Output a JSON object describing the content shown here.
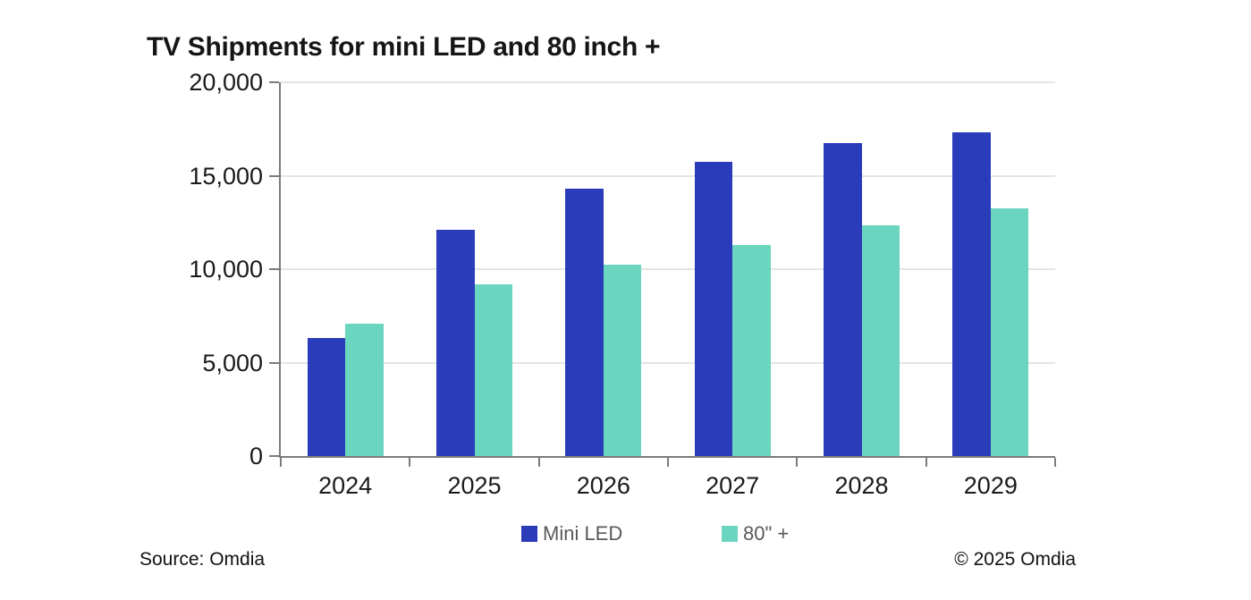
{
  "chart_data": {
    "type": "bar",
    "title": "TV Shipments for mini LED and 80 inch +",
    "categories": [
      "2024",
      "2025",
      "2026",
      "2027",
      "2028",
      "2029"
    ],
    "series": [
      {
        "name": "Mini LED",
        "color": "#2b3cba",
        "values": [
          6300,
          12100,
          14300,
          15750,
          16750,
          17300
        ]
      },
      {
        "name": "80\" +",
        "color": "#6ad6bf",
        "values": [
          7100,
          9200,
          10250,
          11300,
          12350,
          13250
        ]
      }
    ],
    "ylim": [
      0,
      20000
    ],
    "y_tick_labels": [
      "20,000",
      "15,000",
      "10,000",
      "5,000",
      "0"
    ],
    "xlabel": "",
    "ylabel": "",
    "grid": "horizontal",
    "legend_position": "bottom"
  },
  "footer": {
    "source": "Source: Omdia",
    "copyright": "© 2025 Omdia"
  },
  "colors": {
    "axis": "#7c7c7c",
    "gridline": "#e4e4e4",
    "label_text": "#1a1a1a",
    "legend_text": "#595959",
    "background": "#ffffff"
  }
}
